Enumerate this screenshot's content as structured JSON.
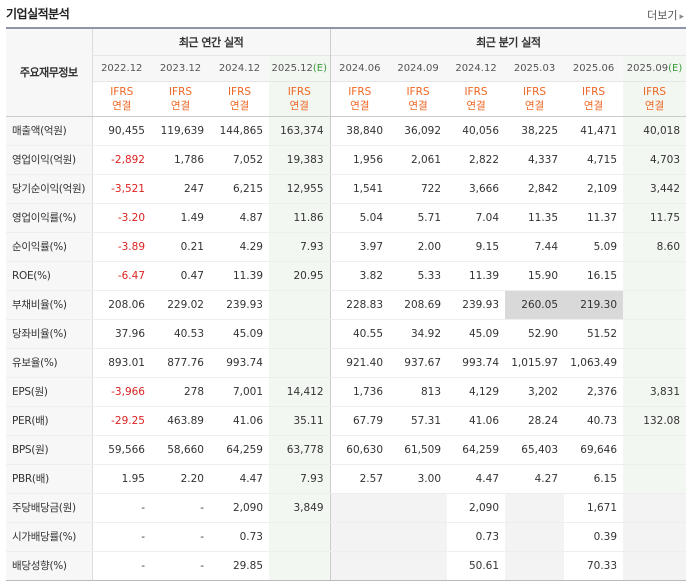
{
  "header": {
    "title": "기업실적분석",
    "more_label": "더보기"
  },
  "table": {
    "label_header": "주요재무정보",
    "group_annual": "최근 연간 실적",
    "group_quarterly": "최근 분기 실적",
    "annual_periods": [
      "2022.12",
      "2023.12",
      "2024.12",
      "2025.12"
    ],
    "annual_est_mark": "(E)",
    "quarterly_periods": [
      "2024.06",
      "2024.09",
      "2024.12",
      "2025.03",
      "2025.06",
      "2025.09"
    ],
    "quarterly_est_mark": "(E)",
    "standard_top": "IFRS",
    "standard_bottom": "연결",
    "rows": [
      {
        "label": "매출액(억원)",
        "values": [
          "90,455",
          "119,639",
          "144,865",
          "163,374",
          "38,840",
          "36,092",
          "40,056",
          "38,225",
          "41,471",
          "40,018"
        ]
      },
      {
        "label": "영업이익(억원)",
        "values": [
          "-2,892",
          "1,786",
          "7,052",
          "19,383",
          "1,956",
          "2,061",
          "2,822",
          "4,337",
          "4,715",
          "4,703"
        ]
      },
      {
        "label": "당기순이익(억원)",
        "values": [
          "-3,521",
          "247",
          "6,215",
          "12,955",
          "1,541",
          "722",
          "3,666",
          "2,842",
          "2,109",
          "3,442"
        ]
      },
      {
        "label": "영업이익률(%)",
        "values": [
          "-3.20",
          "1.49",
          "4.87",
          "11.86",
          "5.04",
          "5.71",
          "7.04",
          "11.35",
          "11.37",
          "11.75"
        ]
      },
      {
        "label": "순이익률(%)",
        "values": [
          "-3.89",
          "0.21",
          "4.29",
          "7.93",
          "3.97",
          "2.00",
          "9.15",
          "7.44",
          "5.09",
          "8.60"
        ]
      },
      {
        "label": "ROE(%)",
        "values": [
          "-6.47",
          "0.47",
          "11.39",
          "20.95",
          "3.82",
          "5.33",
          "11.39",
          "15.90",
          "16.15",
          ""
        ]
      },
      {
        "label": "부채비율(%)",
        "values": [
          "208.06",
          "229.02",
          "239.93",
          "",
          "228.83",
          "208.69",
          "239.93",
          "260.05",
          "219.30",
          ""
        ]
      },
      {
        "label": "당좌비율(%)",
        "values": [
          "37.96",
          "40.53",
          "45.09",
          "",
          "40.55",
          "34.92",
          "45.09",
          "52.90",
          "51.52",
          ""
        ]
      },
      {
        "label": "유보율(%)",
        "values": [
          "893.01",
          "877.76",
          "993.74",
          "",
          "921.40",
          "937.67",
          "993.74",
          "1,015.97",
          "1,063.49",
          ""
        ]
      },
      {
        "label": "EPS(원)",
        "values": [
          "-3,966",
          "278",
          "7,001",
          "14,412",
          "1,736",
          "813",
          "4,129",
          "3,202",
          "2,376",
          "3,831"
        ]
      },
      {
        "label": "PER(배)",
        "values": [
          "-29.25",
          "463.89",
          "41.06",
          "35.11",
          "67.79",
          "57.31",
          "41.06",
          "28.24",
          "40.73",
          "132.08"
        ]
      },
      {
        "label": "BPS(원)",
        "values": [
          "59,566",
          "58,660",
          "64,259",
          "63,778",
          "60,630",
          "61,509",
          "64,259",
          "65,403",
          "69,646",
          ""
        ]
      },
      {
        "label": "PBR(배)",
        "values": [
          "1.95",
          "2.20",
          "4.47",
          "7.93",
          "2.57",
          "3.00",
          "4.47",
          "4.27",
          "6.15",
          ""
        ]
      },
      {
        "label": "주당배당금(원)",
        "values": [
          "-",
          "-",
          "2,090",
          "3,849",
          "",
          "",
          "2,090",
          "",
          "1,671",
          ""
        ]
      },
      {
        "label": "시가배당률(%)",
        "values": [
          "-",
          "-",
          "0.73",
          "",
          "",
          "",
          "0.73",
          "",
          "0.39",
          ""
        ]
      },
      {
        "label": "배당성향(%)",
        "values": [
          "-",
          "-",
          "29.85",
          "",
          "",
          "",
          "50.61",
          "",
          "70.33",
          ""
        ]
      }
    ],
    "highlighted_cells": [
      "부채비율(%) 2025.03",
      "부채비율(%) 2025.06"
    ],
    "colors": {
      "negative": "#dd2222",
      "standard": "#ee6622",
      "estimate_bg": "#f3f7f2",
      "estimate_mark": "#3a9a3a",
      "highlight_bg": "#d9d9d9"
    }
  }
}
